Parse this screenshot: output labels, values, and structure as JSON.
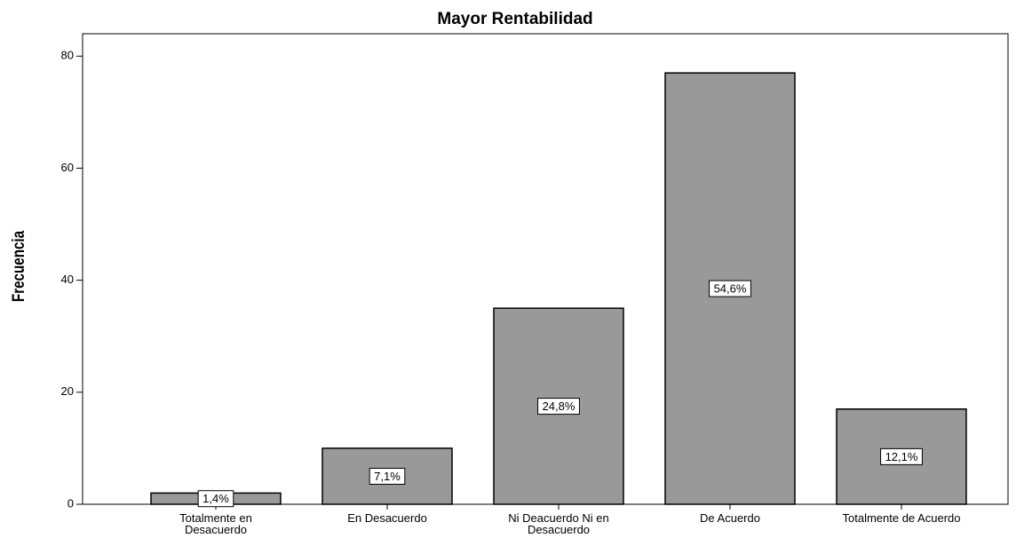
{
  "chart_data": {
    "type": "bar",
    "title": "Mayor Rentabilidad",
    "y_label": "Frecuencia",
    "categories": [
      "Totalmente en Desacuerdo",
      "En Desacuerdo",
      "Ni Deacuerdo Ni en Desacuerdo",
      "De Acuerdo",
      "Totalmente de Acuerdo"
    ],
    "values": [
      2,
      10,
      35,
      77,
      17
    ],
    "percentages": [
      {
        "value": 1.4,
        "label": "1,4%"
      },
      {
        "value": 7.1,
        "label": "7,1%"
      },
      {
        "value": 24.8,
        "label": "24,8%"
      },
      {
        "value": 54.6,
        "label": "54,6%"
      },
      {
        "value": 12.1,
        "label": "12,1%"
      }
    ],
    "color": "#999999",
    "ylim": [
      0,
      84
    ],
    "yticks": [
      0,
      20,
      40,
      60,
      80
    ],
    "grid": false
  }
}
